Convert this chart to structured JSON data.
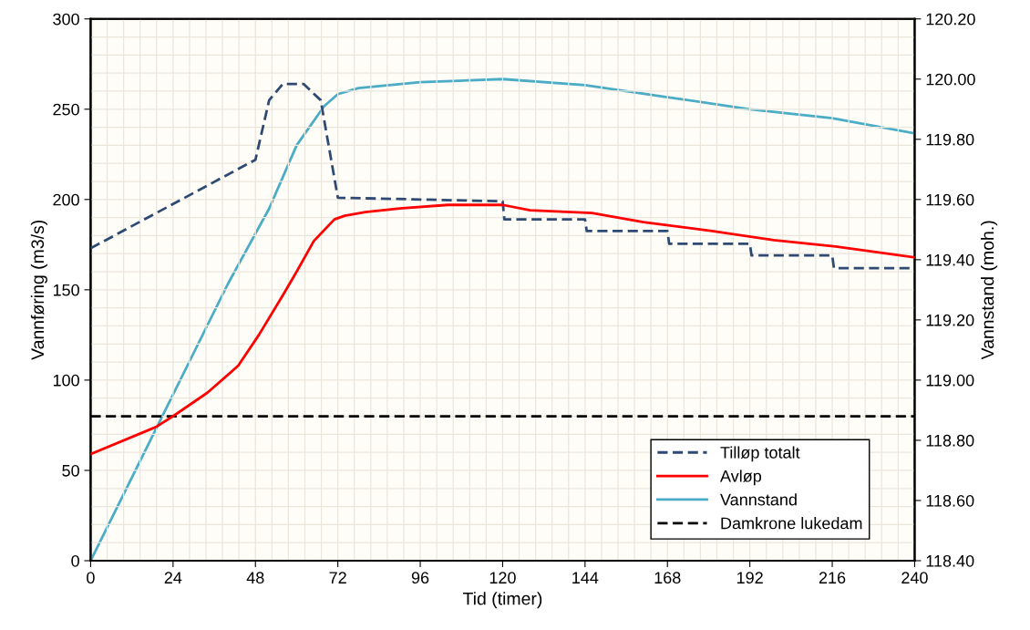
{
  "chart_data": {
    "type": "line",
    "xlabel": "Tid (timer)",
    "ylabel": "Vannføring (m3/s)",
    "y2label": "Vannstand (moh.)",
    "xlim": [
      0,
      240
    ],
    "xticks": [
      0,
      24,
      48,
      72,
      96,
      120,
      144,
      168,
      192,
      216,
      240
    ],
    "ylim": [
      0,
      300
    ],
    "yticks": [
      0,
      50,
      100,
      150,
      200,
      250,
      300
    ],
    "y2lim": [
      118.4,
      120.2
    ],
    "y2ticks": [
      {
        "value": 118.4,
        "label": "118.40"
      },
      {
        "value": 118.6,
        "label": "118.60"
      },
      {
        "value": 118.8,
        "label": "118.80"
      },
      {
        "value": 119.0,
        "label": "119.00"
      },
      {
        "value": 119.2,
        "label": "119.20"
      },
      {
        "value": 119.4,
        "label": "119.40"
      },
      {
        "value": 119.6,
        "label": "119.60"
      },
      {
        "value": 119.8,
        "label": "119.80"
      },
      {
        "value": 120.0,
        "label": "120.00"
      },
      {
        "value": 120.2,
        "label": "120.20"
      }
    ],
    "grid": true,
    "legend": "bottom right",
    "marker": "none",
    "series": [
      {
        "name": "Tilløp totalt",
        "color": "#2e4a73",
        "line_style": "dashed",
        "x": [
          0,
          48,
          52,
          56,
          62,
          67,
          72,
          120,
          120.5,
          144,
          144.5,
          168,
          168.5,
          192,
          192.5,
          216,
          216.5,
          240
        ],
        "values": [
          173,
          222,
          255,
          264,
          264,
          255,
          201,
          199,
          189,
          189,
          182.5,
          182.5,
          175.5,
          175.5,
          169,
          169,
          162,
          162
        ]
      },
      {
        "name": "Avløp",
        "color": "#ff0000",
        "line_style": "solid",
        "x": [
          0,
          19,
          24,
          34,
          43,
          49,
          56,
          60,
          65,
          71,
          74,
          80,
          90,
          104,
          120,
          128,
          146,
          161,
          181,
          199,
          217,
          240
        ],
        "values": [
          59,
          74,
          80,
          93,
          108,
          125,
          147,
          160,
          177,
          189,
          191,
          193,
          195,
          197,
          197,
          194,
          192.5,
          187.5,
          182.5,
          177.5,
          174,
          168
        ]
      },
      {
        "name": "Vannstand",
        "color": "#4bacc6",
        "line_style": "solid",
        "axis": "y2",
        "x": [
          0,
          40,
          52,
          60,
          68,
          72,
          78,
          96,
          120,
          144,
          168,
          192,
          216,
          240
        ],
        "values": [
          118.4,
          119.32,
          119.57,
          119.78,
          119.91,
          119.95,
          119.97,
          119.99,
          120.0,
          119.98,
          119.94,
          119.9,
          119.87,
          119.82
        ]
      }
    ],
    "ref_lines": [
      {
        "axis": "y",
        "value": 80,
        "label": "Damkrone lukedam",
        "color": "#000000",
        "line_style": "dashed"
      }
    ]
  }
}
